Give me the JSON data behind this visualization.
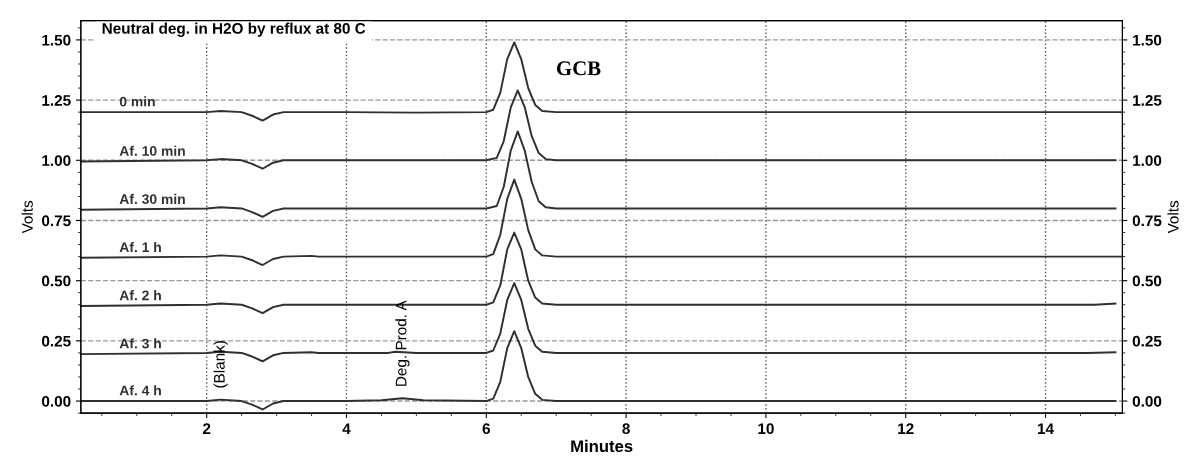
{
  "chart_data": {
    "type": "line",
    "title": "Neutral deg. in H2O by reflux at 80 C",
    "xlabel": "Minutes",
    "ylabel": "Volts",
    "y2label": "Volts",
    "xlim": [
      0.2,
      15.1
    ],
    "ylim": [
      -0.05,
      1.58
    ],
    "y2lim": [
      -0.05,
      1.58
    ],
    "xticks": [
      2,
      4,
      6,
      8,
      10,
      12,
      14
    ],
    "yticks": [
      {
        "value": 0,
        "label": "0.00"
      },
      {
        "value": 0.25,
        "label": "0.25"
      },
      {
        "value": 0.5,
        "label": "0.50"
      },
      {
        "value": 0.75,
        "label": "0.75"
      },
      {
        "value": 1.0,
        "label": "1.00"
      },
      {
        "value": 1.25,
        "label": "1.25"
      },
      {
        "value": 1.5,
        "label": "1.50"
      }
    ],
    "y2ticks": [
      {
        "value": 0,
        "label": "0.00"
      },
      {
        "value": 0.25,
        "label": "0.25"
      },
      {
        "value": 0.5,
        "label": "0.50"
      },
      {
        "value": 0.75,
        "label": "0.75"
      },
      {
        "value": 1.0,
        "label": "1.00"
      },
      {
        "value": 1.25,
        "label": "1.25"
      },
      {
        "value": 1.5,
        "label": "1.50"
      }
    ],
    "grid": true,
    "marker": "none",
    "line_style": "solid",
    "series": [
      {
        "name": "0 min",
        "color": "#303030",
        "x": [
          0.2,
          2.0,
          2.2,
          2.5,
          2.65,
          2.8,
          2.95,
          3.1,
          4.0,
          5.0,
          6.0,
          6.1,
          6.2,
          6.3,
          6.4,
          6.5,
          6.6,
          6.7,
          6.8,
          7.0,
          10.0,
          15.1
        ],
        "values": [
          1.2,
          1.2,
          1.205,
          1.2,
          1.185,
          1.165,
          1.19,
          1.2,
          1.2,
          1.198,
          1.2,
          1.21,
          1.28,
          1.42,
          1.49,
          1.42,
          1.3,
          1.23,
          1.205,
          1.2,
          1.2,
          1.2
        ]
      },
      {
        "name": "Af. 10 min",
        "color": "#303030",
        "x": [
          0.2,
          2.0,
          2.2,
          2.5,
          2.65,
          2.8,
          2.95,
          3.1,
          4.0,
          5.0,
          6.0,
          6.15,
          6.25,
          6.35,
          6.45,
          6.55,
          6.65,
          6.75,
          6.85,
          7.0,
          10.0,
          15.0
        ],
        "values": [
          0.995,
          1.0,
          1.005,
          1.0,
          0.985,
          0.965,
          0.99,
          1.0,
          1.0,
          1.0,
          1.0,
          1.01,
          1.08,
          1.22,
          1.29,
          1.22,
          1.1,
          1.03,
          1.005,
          1.0,
          1.0,
          1.0
        ]
      },
      {
        "name": "Af. 30 min",
        "color": "#303030",
        "x": [
          0.2,
          2.0,
          2.2,
          2.5,
          2.65,
          2.8,
          2.95,
          3.1,
          4.0,
          5.0,
          6.0,
          6.15,
          6.25,
          6.35,
          6.45,
          6.55,
          6.65,
          6.75,
          6.85,
          7.0,
          10.0,
          15.0
        ],
        "values": [
          0.795,
          0.8,
          0.805,
          0.8,
          0.785,
          0.765,
          0.79,
          0.8,
          0.8,
          0.8,
          0.8,
          0.81,
          0.89,
          1.04,
          1.12,
          1.04,
          0.91,
          0.83,
          0.805,
          0.8,
          0.8,
          0.8
        ]
      },
      {
        "name": "Af. 1 h",
        "color": "#303030",
        "x": [
          0.2,
          2.0,
          2.2,
          2.5,
          2.65,
          2.8,
          2.95,
          3.1,
          3.5,
          3.6,
          4.0,
          5.0,
          6.0,
          6.1,
          6.2,
          6.3,
          6.4,
          6.5,
          6.6,
          6.7,
          6.8,
          7.0,
          10.0,
          15.1
        ],
        "values": [
          0.595,
          0.6,
          0.605,
          0.6,
          0.585,
          0.565,
          0.59,
          0.6,
          0.603,
          0.6,
          0.6,
          0.6,
          0.6,
          0.61,
          0.69,
          0.84,
          0.92,
          0.84,
          0.71,
          0.63,
          0.605,
          0.6,
          0.6,
          0.6
        ]
      },
      {
        "name": "Af. 2 h",
        "color": "#303030",
        "x": [
          0.2,
          2.0,
          2.2,
          2.5,
          2.65,
          2.8,
          2.95,
          3.1,
          4.0,
          5.0,
          6.0,
          6.1,
          6.2,
          6.3,
          6.4,
          6.5,
          6.6,
          6.7,
          6.8,
          7.0,
          10.0,
          14.7,
          15.0
        ],
        "values": [
          0.395,
          0.4,
          0.405,
          0.4,
          0.385,
          0.365,
          0.39,
          0.4,
          0.4,
          0.4,
          0.4,
          0.41,
          0.48,
          0.63,
          0.7,
          0.63,
          0.5,
          0.43,
          0.405,
          0.4,
          0.4,
          0.4,
          0.405
        ]
      },
      {
        "name": "Af. 3 h",
        "color": "#303030",
        "x": [
          0.2,
          2.0,
          2.2,
          2.5,
          2.65,
          2.8,
          2.95,
          3.1,
          3.5,
          3.6,
          4.0,
          4.6,
          4.7,
          5.0,
          6.0,
          6.1,
          6.2,
          6.3,
          6.4,
          6.5,
          6.6,
          6.7,
          6.8,
          7.0,
          10.0,
          13.7,
          14.6,
          15.0
        ],
        "values": [
          0.195,
          0.2,
          0.205,
          0.2,
          0.185,
          0.165,
          0.19,
          0.2,
          0.203,
          0.2,
          0.2,
          0.2,
          0.205,
          0.2,
          0.2,
          0.21,
          0.28,
          0.42,
          0.49,
          0.42,
          0.3,
          0.23,
          0.205,
          0.2,
          0.2,
          0.2,
          0.2,
          0.203
        ]
      },
      {
        "name": "Af. 4 h",
        "color": "#303030",
        "x": [
          0.2,
          2.0,
          2.2,
          2.5,
          2.65,
          2.8,
          2.95,
          3.1,
          4.0,
          4.5,
          4.8,
          5.1,
          6.0,
          6.1,
          6.2,
          6.3,
          6.4,
          6.5,
          6.6,
          6.7,
          6.8,
          7.0,
          10.0,
          15.0
        ],
        "values": [
          0.0,
          0.0,
          0.006,
          0.0,
          -0.015,
          -0.035,
          -0.01,
          0.0,
          0.0,
          0.003,
          0.012,
          0.003,
          0.0,
          0.01,
          0.08,
          0.22,
          0.29,
          0.22,
          0.1,
          0.03,
          0.005,
          0.0,
          0.0,
          0.0
        ]
      }
    ],
    "annotations": [
      {
        "text": "GCB",
        "x": 6.4,
        "y": 1.49
      },
      {
        "text": "(Blank)",
        "x": 2.2,
        "y": 0.006
      },
      {
        "text": "Deg. Prod. A",
        "x": 4.8,
        "y": 0.012
      }
    ]
  }
}
